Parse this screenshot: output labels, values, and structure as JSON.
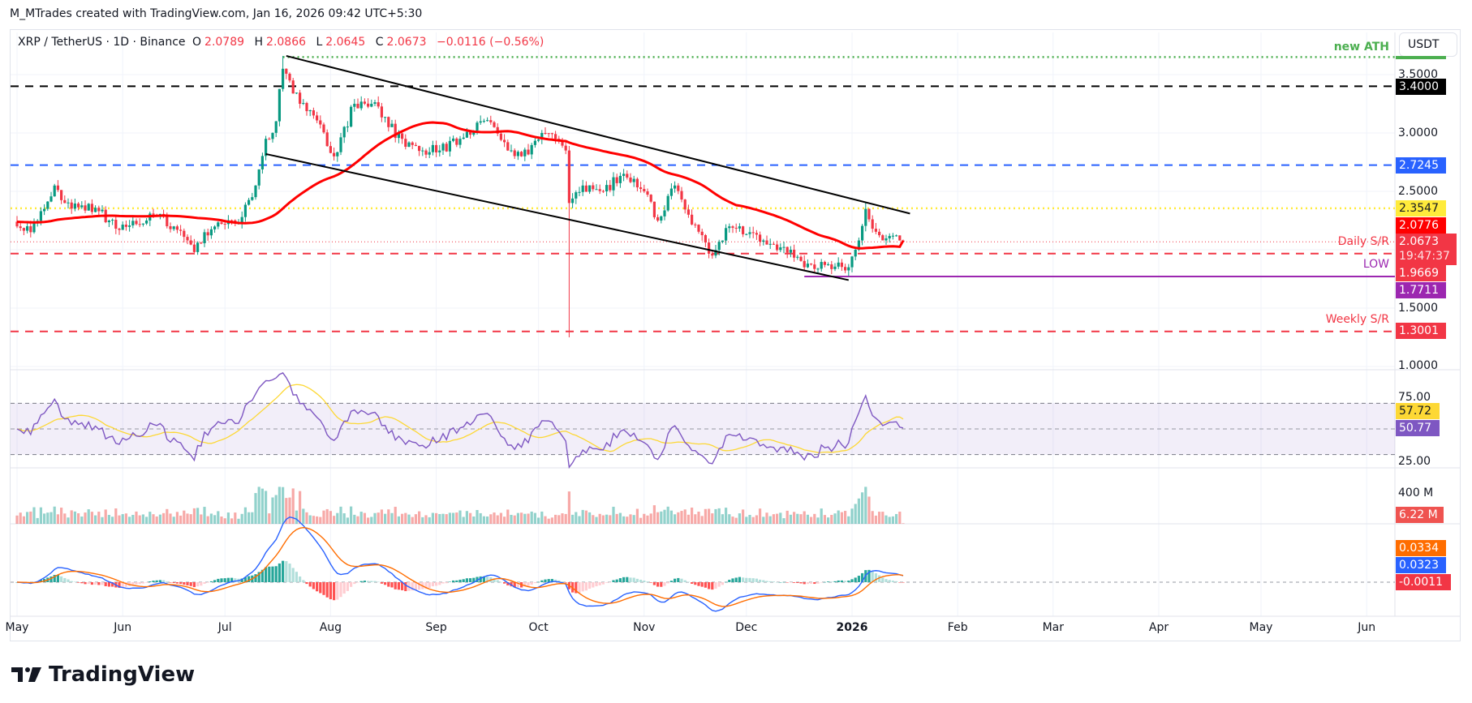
{
  "credit": "M_MTrades created with TradingView.com, Jan 16, 2026 09:42 UTC+5:30",
  "legend": {
    "symbol": "XRP / TetherUS · 1D · Binance",
    "o_label": "O",
    "o": "2.0789",
    "h_label": "H",
    "h": "2.0866",
    "l_label": "L",
    "l": "2.0645",
    "c_label": "C",
    "c": "2.0673",
    "change": "−0.0116 (−0.56%)"
  },
  "currency_button": "USDT",
  "annotations": {
    "new_ath": "new ATH",
    "daily_sr": "Daily S/R",
    "low": "LOW",
    "weekly_sr": "Weekly S/R"
  },
  "price_axis": {
    "ticks": [
      "3.5000",
      "3.0000",
      "2.5000",
      "1.5000",
      "1.0000"
    ],
    "labels": {
      "resistance_340": "3.4000",
      "resistance_27245": "2.7245",
      "level_23547": "2.3547",
      "ma50": "2.0776",
      "last_price": "2.0673",
      "countdown": "19:47:37",
      "daily_sr": "1.9669",
      "low": "1.7711",
      "weekly_sr": "1.3001"
    }
  },
  "rsi_axis": {
    "ticks": [
      "75.00",
      "25.00"
    ],
    "rsi_ma": "57.72",
    "rsi": "50.77"
  },
  "volume_axis": {
    "tick": "400 M",
    "last": "6.22 M"
  },
  "macd_axis": {
    "signal": "0.0334",
    "macd": "0.0323",
    "histogram": "-0.0011"
  },
  "time_axis": [
    "May",
    "Jun",
    "Jul",
    "Aug",
    "Sep",
    "Oct",
    "Nov",
    "Dec",
    "2026",
    "Feb",
    "Mar",
    "Apr",
    "May",
    "Jun"
  ],
  "brand": "TradingView",
  "colors": {
    "up": "#089981",
    "down": "#f23645",
    "ma": "#ff0000",
    "ath": "#4caf50",
    "blue_level": "#2962ff",
    "yellow_level": "#ffeb3b",
    "low": "#9c27b0",
    "rsi": "#7e57c2",
    "rsi_ma": "#fdd835",
    "macd": "#2962ff",
    "signal": "#ff6d00"
  },
  "chart_data": {
    "type": "candlestick",
    "interval": "1D",
    "last_bar": {
      "date": "2026-01-16",
      "open": 2.0789,
      "high": 2.0866,
      "low": 2.0645,
      "close": 2.0673
    },
    "close_path": [
      [
        "2025-05-01",
        2.2
      ],
      [
        "2025-05-05",
        2.15
      ],
      [
        "2025-05-09",
        2.35
      ],
      [
        "2025-05-12",
        2.55
      ],
      [
        "2025-05-15",
        2.4
      ],
      [
        "2025-05-20",
        2.38
      ],
      [
        "2025-05-25",
        2.33
      ],
      [
        "2025-05-31",
        2.17
      ],
      [
        "2025-06-05",
        2.22
      ],
      [
        "2025-06-10",
        2.3
      ],
      [
        "2025-06-16",
        2.2
      ],
      [
        "2025-06-22",
        1.98
      ],
      [
        "2025-06-25",
        2.15
      ],
      [
        "2025-07-01",
        2.22
      ],
      [
        "2025-07-06",
        2.28
      ],
      [
        "2025-07-10",
        2.55
      ],
      [
        "2025-07-13",
        2.95
      ],
      [
        "2025-07-16",
        3.1
      ],
      [
        "2025-07-18",
        3.55
      ],
      [
        "2025-07-20",
        3.45
      ],
      [
        "2025-07-23",
        3.25
      ],
      [
        "2025-07-27",
        3.15
      ],
      [
        "2025-08-02",
        2.8
      ],
      [
        "2025-08-08",
        3.25
      ],
      [
        "2025-08-13",
        3.25
      ],
      [
        "2025-08-18",
        3.05
      ],
      [
        "2025-08-22",
        2.95
      ],
      [
        "2025-08-28",
        2.85
      ],
      [
        "2025-09-02",
        2.85
      ],
      [
        "2025-09-08",
        2.95
      ],
      [
        "2025-09-14",
        3.1
      ],
      [
        "2025-09-18",
        3.05
      ],
      [
        "2025-09-22",
        2.85
      ],
      [
        "2025-09-26",
        2.8
      ],
      [
        "2025-10-02",
        3.0
      ],
      [
        "2025-10-06",
        2.95
      ],
      [
        "2025-10-09",
        2.85
      ],
      [
        "2025-10-10",
        2.4
      ],
      [
        "2025-10-14",
        2.55
      ],
      [
        "2025-10-20",
        2.5
      ],
      [
        "2025-10-26",
        2.65
      ],
      [
        "2025-11-01",
        2.5
      ],
      [
        "2025-11-05",
        2.25
      ],
      [
        "2025-11-10",
        2.55
      ],
      [
        "2025-11-14",
        2.3
      ],
      [
        "2025-11-21",
        1.95
      ],
      [
        "2025-11-26",
        2.2
      ],
      [
        "2025-12-02",
        2.15
      ],
      [
        "2025-12-08",
        2.05
      ],
      [
        "2025-12-14",
        2.0
      ],
      [
        "2025-12-18",
        1.85
      ],
      [
        "2025-12-24",
        1.87
      ],
      [
        "2025-12-31",
        1.85
      ],
      [
        "2026-01-02",
        2.0
      ],
      [
        "2026-01-05",
        2.35
      ],
      [
        "2026-01-07",
        2.18
      ],
      [
        "2026-01-10",
        2.08
      ],
      [
        "2026-01-13",
        2.12
      ],
      [
        "2026-01-16",
        2.0673
      ]
    ],
    "notable_wicks": [
      [
        "2025-07-18",
        "high",
        3.66
      ],
      [
        "2025-10-10",
        "low",
        1.25
      ],
      [
        "2026-01-05",
        "high",
        2.41
      ]
    ],
    "moving_average": {
      "type": "SMA",
      "length": 50,
      "last": 2.0776
    },
    "horizontal_levels": [
      {
        "label": "new ATH",
        "price": 3.65,
        "style": "dotted",
        "color": "#4caf50"
      },
      {
        "price": 3.4,
        "style": "dashed",
        "color": "#000000"
      },
      {
        "price": 2.7245,
        "style": "dashed",
        "color": "#2962ff"
      },
      {
        "price": 2.3547,
        "style": "dotted",
        "color": "#ffeb3b"
      },
      {
        "label": "Daily S/R",
        "price": 1.9669,
        "style": "dashed",
        "color": "#f23645"
      },
      {
        "label": "LOW",
        "price": 1.7711,
        "style": "solid",
        "color": "#9c27b0"
      },
      {
        "label": "Weekly S/R",
        "price": 1.3001,
        "style": "dashed",
        "color": "#f23645"
      }
    ],
    "channel": {
      "upper": [
        [
          "2025-07-19",
          3.66
        ],
        [
          "2026-01-18",
          2.31
        ]
      ],
      "lower": [
        [
          "2025-07-13",
          2.82
        ],
        [
          "2025-12-31",
          1.74
        ]
      ]
    },
    "y_range": [
      0.98,
      3.85
    ],
    "x_range": [
      "2025-04-29",
      "2026-06-25"
    ],
    "indicators": {
      "rsi": {
        "length": 14,
        "last": 50.77,
        "ma_last": 57.72,
        "bands": [
          30,
          50,
          70
        ],
        "ylim": [
          20,
          95
        ]
      },
      "volume": {
        "last_millions": 6.22
      },
      "macd": {
        "fast": 12,
        "slow": 26,
        "signal": 9,
        "macd_last": 0.0323,
        "signal_last": 0.0334,
        "hist_last": -0.0011
      }
    },
    "grid": true
  }
}
